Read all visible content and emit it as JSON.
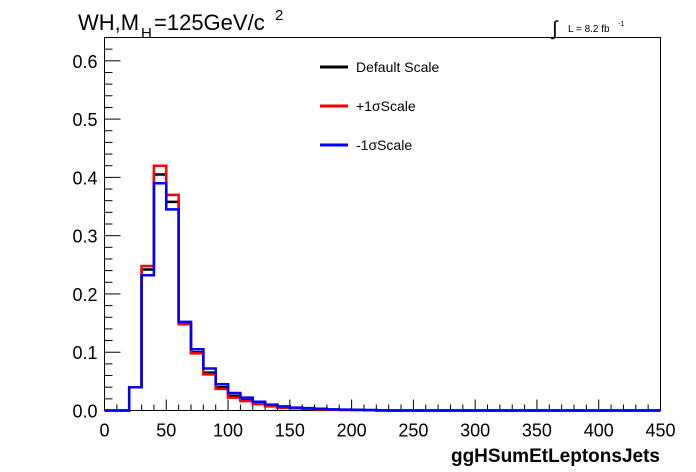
{
  "chart_data": {
    "type": "line",
    "title_main": "WH,M",
    "title_sub": "H",
    "title_rest": "=125GeV/c",
    "title_sup": "2",
    "lumi_integral": "∫",
    "lumi_text": "L = 8.2 fb",
    "lumi_sup": "-1",
    "xlabel": "ggHSumEtLeptonsJets",
    "ylabel": "",
    "xlim": [
      0,
      450
    ],
    "ylim": [
      0,
      0.64
    ],
    "xticks": [
      "0",
      "50",
      "100",
      "150",
      "200",
      "250",
      "300",
      "350",
      "400",
      "450"
    ],
    "yticks": [
      "0.0",
      "0.1",
      "0.2",
      "0.3",
      "0.4",
      "0.5",
      "0.6"
    ],
    "bin_edges": [
      0,
      10,
      20,
      30,
      40,
      50,
      60,
      70,
      80,
      90,
      100,
      110,
      120,
      130,
      140,
      150,
      160,
      170,
      180,
      190,
      200,
      210,
      220,
      230,
      240,
      250,
      260,
      270,
      280,
      290,
      300,
      310,
      320,
      330,
      340,
      350,
      360,
      370,
      380,
      390,
      400,
      410,
      420,
      430,
      440,
      450
    ],
    "series": [
      {
        "name": "Default Scale",
        "color": "#000000",
        "values": [
          0,
          0,
          0.04,
          0.242,
          0.405,
          0.358,
          0.15,
          0.1,
          0.065,
          0.04,
          0.025,
          0.018,
          0.012,
          0.008,
          0.005,
          0.004,
          0.003,
          0.002,
          0.0015,
          0.001,
          0.001,
          0.0005,
          0,
          0,
          0,
          0,
          0,
          0,
          0,
          0,
          0,
          0,
          0,
          0,
          0,
          0,
          0,
          0,
          0,
          0,
          0,
          0,
          0,
          0,
          0
        ]
      },
      {
        "name": "+1σScale",
        "color": "#ff0000",
        "values": [
          0,
          0,
          0.04,
          0.248,
          0.42,
          0.37,
          0.148,
          0.098,
          0.062,
          0.037,
          0.022,
          0.016,
          0.011,
          0.007,
          0.005,
          0.004,
          0.003,
          0.002,
          0.0015,
          0.001,
          0.001,
          0.0005,
          0,
          0,
          0,
          0,
          0,
          0,
          0,
          0,
          0,
          0,
          0,
          0,
          0,
          0,
          0,
          0,
          0,
          0,
          0,
          0,
          0,
          0,
          0
        ]
      },
      {
        "name": "-1σScale",
        "color": "#0000ff",
        "values": [
          0,
          0,
          0.04,
          0.232,
          0.39,
          0.345,
          0.152,
          0.105,
          0.072,
          0.045,
          0.03,
          0.022,
          0.015,
          0.01,
          0.007,
          0.005,
          0.004,
          0.003,
          0.002,
          0.0015,
          0.001,
          0.0008,
          0.0005,
          0,
          0,
          0,
          0,
          0,
          0,
          0,
          0,
          0,
          0,
          0,
          0,
          0,
          0,
          0,
          0,
          0,
          0,
          0,
          0,
          0,
          0
        ]
      }
    ],
    "legend_position": "top-center"
  }
}
